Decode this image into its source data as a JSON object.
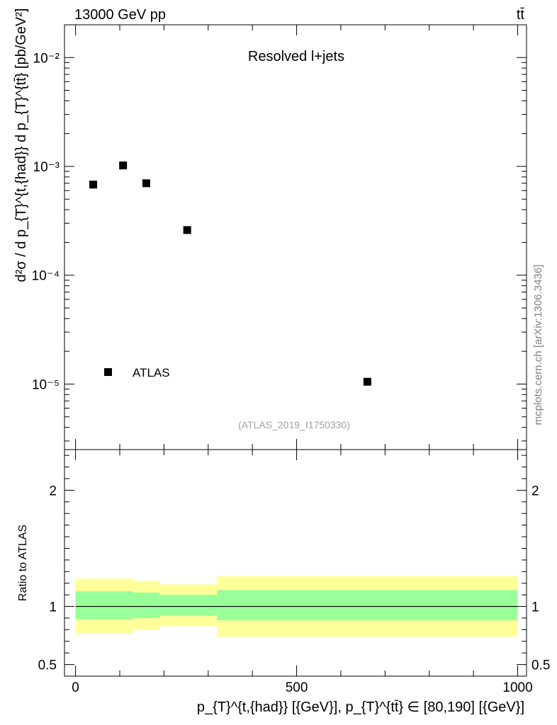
{
  "header": {
    "left": "13000 GeV pp",
    "right": "tt̄"
  },
  "watermark": "mcplots.cern.ch [arXiv:1306.3436]",
  "analysis_id": "(ATLAS_2019_I1750330)",
  "top_label": "Resolved l+jets",
  "legend": {
    "label": "ATLAS"
  },
  "colors": {
    "band_inner": "#99ff99",
    "band_outer": "#ffff99",
    "marker": "#000000",
    "line": "#000000"
  },
  "chart_data": [
    {
      "type": "scatter",
      "panel": "main",
      "ylabel": "d²σ / d p_{T}^{t,{had}} d p_{T}^{tt̄} [pb/GeV²]",
      "yscale": "log",
      "ylim": [
        2.5e-06,
        0.02
      ],
      "xlim": [
        -25,
        1020
      ],
      "y_tick_labels": [
        "10⁻⁵",
        "10⁻⁴",
        "10⁻³",
        "10⁻²"
      ],
      "series": [
        {
          "name": "ATLAS",
          "x": [
            40,
            107.5,
            160,
            252.5,
            660
          ],
          "y": [
            0.00068,
            0.00102,
            0.0007,
            0.00026,
            1.05e-05
          ]
        }
      ]
    },
    {
      "type": "area",
      "panel": "ratio",
      "ylabel": "Ratio to ATLAS",
      "xlabel": "p_{T}^{t,{had}} [{GeV}], p_{T}^{tt̄} ∈ [80,190] [{GeV}]",
      "ylim": [
        0.4,
        2.35
      ],
      "xlim": [
        -25,
        1020
      ],
      "x_tick_labels": [
        "0",
        "500",
        "1000"
      ],
      "y_tick_labels": [
        "0.5",
        "1",
        "2"
      ],
      "bins": [
        {
          "x_low": 0,
          "x_high": 130,
          "inner_low": 0.89,
          "inner_high": 1.13,
          "outer_low": 0.77,
          "outer_high": 1.24
        },
        {
          "x_low": 130,
          "x_high": 190,
          "inner_low": 0.9,
          "inner_high": 1.12,
          "outer_low": 0.8,
          "outer_high": 1.22
        },
        {
          "x_low": 190,
          "x_high": 320,
          "inner_low": 0.92,
          "inner_high": 1.1,
          "outer_low": 0.83,
          "outer_high": 1.19
        },
        {
          "x_low": 320,
          "x_high": 1000,
          "inner_low": 0.88,
          "inner_high": 1.14,
          "outer_low": 0.74,
          "outer_high": 1.26
        }
      ],
      "reference_line": 1
    }
  ]
}
